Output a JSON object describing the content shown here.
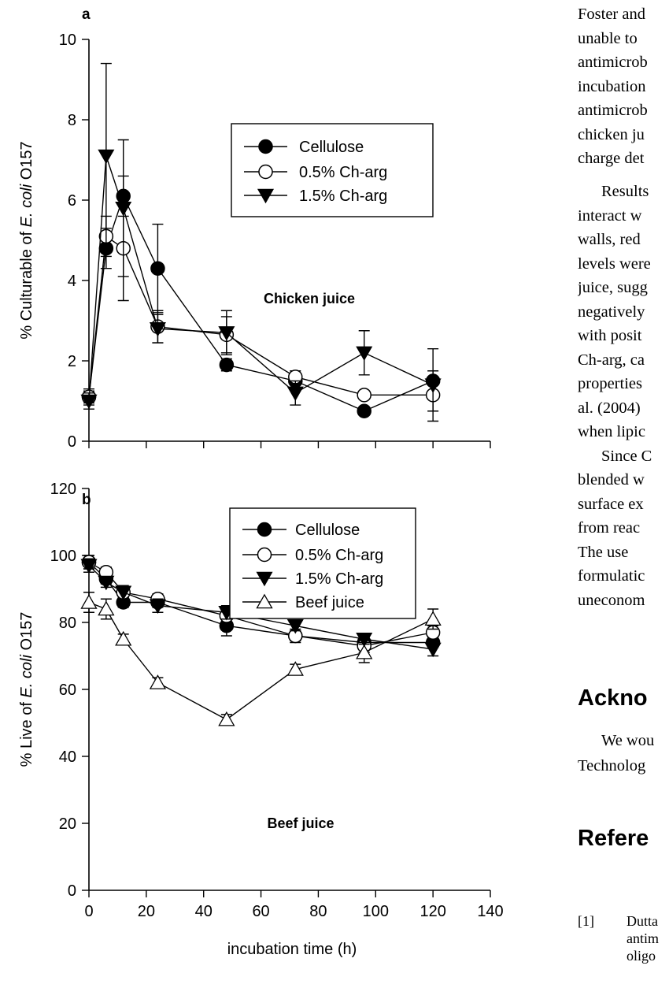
{
  "chart_data": [
    {
      "panel_label": "a",
      "type": "line",
      "xlabel": "",
      "ylabel_parts": [
        "% Culturable of ",
        "E. coli",
        " O157"
      ],
      "annotation": "Chicken juice",
      "xlim": [
        0,
        140
      ],
      "ylim": [
        0,
        10
      ],
      "yticks": [
        0,
        2,
        4,
        6,
        8,
        10
      ],
      "xticks": [
        0,
        20,
        40,
        60,
        80,
        100,
        120,
        140
      ],
      "xtick_labels_shown": false,
      "legend_position": "upper-middle",
      "x": [
        0,
        6,
        12,
        24,
        48,
        72,
        96,
        120
      ],
      "series": [
        {
          "name": "Cellulose",
          "marker": "circle-filled",
          "values": [
            1.1,
            4.8,
            6.1,
            4.3,
            1.9,
            1.5,
            0.75,
            1.5
          ],
          "errors": [
            0.15,
            0.5,
            0.5,
            1.1,
            0.15,
            0.1,
            0.1,
            0.25
          ]
        },
        {
          "name": "0.5% Ch-arg",
          "marker": "circle-open",
          "values": [
            1.1,
            5.1,
            4.8,
            2.85,
            2.65,
            1.6,
            1.15,
            1.15
          ],
          "errors": [
            0.2,
            0.5,
            1.3,
            0.4,
            0.45,
            0.15,
            0.1,
            0.4
          ]
        },
        {
          "name": "1.5% Ch-arg",
          "marker": "triangle-down-filled",
          "values": [
            1.0,
            7.1,
            5.8,
            2.8,
            2.7,
            1.2,
            2.2,
            1.4
          ],
          "errors": [
            0.2,
            2.3,
            1.7,
            0.35,
            0.55,
            0.3,
            0.55,
            0.9
          ]
        }
      ]
    },
    {
      "panel_label": "b",
      "type": "line",
      "xlabel": "incubation time (h)",
      "ylabel_parts": [
        "% Live of ",
        "E. coli",
        " O157"
      ],
      "annotation": "Beef juice",
      "xlim": [
        0,
        140
      ],
      "ylim": [
        0,
        120
      ],
      "yticks": [
        0,
        20,
        40,
        60,
        80,
        100,
        120
      ],
      "xticks": [
        0,
        20,
        40,
        60,
        80,
        100,
        120,
        140
      ],
      "xtick_labels_shown": true,
      "legend_position": "top-right",
      "x": [
        0,
        6,
        12,
        24,
        48,
        72,
        96,
        120
      ],
      "series": [
        {
          "name": "Cellulose",
          "marker": "circle-filled",
          "values": [
            98,
            93,
            86,
            86,
            79,
            76,
            74,
            74
          ],
          "errors": [
            2,
            1.5,
            1.5,
            1.5,
            3,
            1.5,
            1.5,
            1.5
          ]
        },
        {
          "name": "0.5% Ch-arg",
          "marker": "circle-open",
          "values": [
            98,
            95,
            89,
            87,
            82,
            76,
            73,
            77
          ],
          "errors": [
            2,
            1.5,
            1.5,
            1.5,
            2,
            2,
            2,
            2
          ]
        },
        {
          "name": "1.5% Ch-arg",
          "marker": "triangle-down-filled",
          "values": [
            97,
            92,
            89,
            85,
            83,
            79,
            75,
            72
          ],
          "errors": [
            2,
            1.5,
            2,
            2,
            2,
            1.5,
            1.5,
            2
          ]
        },
        {
          "name": "Beef juice",
          "marker": "triangle-up-open",
          "values": [
            86,
            84,
            75,
            62,
            51,
            66,
            71,
            81
          ],
          "errors": [
            3,
            3,
            1.5,
            1.5,
            1.5,
            1.5,
            3,
            3
          ]
        }
      ]
    }
  ],
  "text_column": {
    "lines_top": [
      "Foster and",
      "unable to",
      "antimicrob",
      "incubation",
      "antimicrob",
      "chicken ju",
      "charge det"
    ],
    "lines_mid": [
      {
        "text": "Results",
        "indent": true
      },
      {
        "text": "interact w",
        "indent": false
      },
      {
        "text": "walls, red",
        "indent": false
      },
      {
        "text": "levels were",
        "indent": false
      },
      {
        "text": "juice, sugg",
        "indent": false
      },
      {
        "text": "negatively",
        "indent": false
      },
      {
        "text": "with posit",
        "indent": false
      },
      {
        "text": "Ch-arg, ca",
        "indent": false
      },
      {
        "text": "properties",
        "indent": false
      },
      {
        "text": "al. (2004)",
        "indent": false
      },
      {
        "text": "when lipic",
        "indent": false
      },
      {
        "text": "Since C",
        "indent": true
      },
      {
        "text": "blended w",
        "indent": false
      },
      {
        "text": "surface ex",
        "indent": false
      },
      {
        "text": "from reac",
        "indent": false
      },
      {
        "text": "The use",
        "indent": false
      },
      {
        "text": "formulatic",
        "indent": false
      },
      {
        "text": "uneconom",
        "indent": false
      }
    ],
    "ack_heading": "Ackno",
    "ack_lines": [
      {
        "text": "We wou",
        "indent": true
      },
      {
        "text": "Technolog",
        "indent": false
      }
    ],
    "ref_heading": "Refere",
    "ref_number": "[1]",
    "ref_lines": [
      "Dutta",
      "antim",
      "oligo"
    ]
  }
}
